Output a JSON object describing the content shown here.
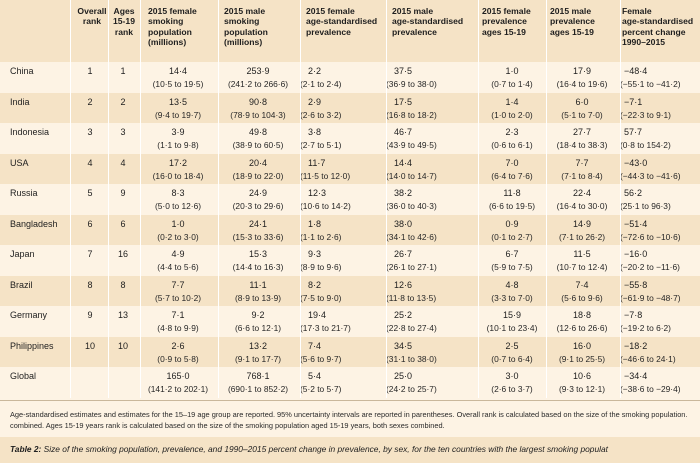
{
  "headers": {
    "overall_rank": "Overall\nrank",
    "ages_rank": "Ages\n15-19\nrank",
    "female_pop": "2015 female\nsmoking\npopulation\n(millions)",
    "male_pop": "2015 male\nsmoking\npopulation\n(millions)",
    "female_prev": "2015 female\nage-standardised\nprevalence",
    "male_prev": "2015 male\nage-standardised\nprevalence",
    "female_prev_1519": "2015 female\nprevalence\nages 15-19",
    "male_prev_1519": "2015 male\nprevalence\nages 15-19",
    "female_change": "Female\nage-standardised\npercent change\n1990–2015"
  },
  "rows": [
    {
      "country": "China",
      "overall": "1",
      "ages": "1",
      "fpop": "14·4",
      "fpop_ci": "(10·5 to 19·5)",
      "mpop": "253·9",
      "mpop_ci": "(241·2 to 266·6)",
      "fprev": "2·2",
      "fprev_ci": "(2·1 to 2·4)",
      "mprev": "37·5",
      "mprev_ci": "(36·9 to 38·0)",
      "fy": "1·0",
      "fy_ci": "(0·7 to 1·4)",
      "my": "17·9",
      "my_ci": "(16·4 to 19·6)",
      "fch": "−48·4",
      "fch_ci": "(−55·1 to −41·2)"
    },
    {
      "country": "India",
      "overall": "2",
      "ages": "2",
      "fpop": "13·5",
      "fpop_ci": "(9·4 to 19·7)",
      "mpop": "90·8",
      "mpop_ci": "(78·9 to 104·3)",
      "fprev": "2·9",
      "fprev_ci": "(2·6 to 3·2)",
      "mprev": "17·5",
      "mprev_ci": "(16·8 to 18·2)",
      "fy": "1·4",
      "fy_ci": "(1·0 to 2·0)",
      "my": "6·0",
      "my_ci": "(5·1 to 7·0)",
      "fch": "−7·1",
      "fch_ci": "(−22·3 to 9·1)"
    },
    {
      "country": "Indonesia",
      "overall": "3",
      "ages": "3",
      "fpop": "3·9",
      "fpop_ci": "(1·1 to 9·8)",
      "mpop": "49·8",
      "mpop_ci": "(38·9 to 60·5)",
      "fprev": "3·8",
      "fprev_ci": "(2·7 to 5·1)",
      "mprev": "46·7",
      "mprev_ci": "(43·9 to 49·5)",
      "fy": "2·3",
      "fy_ci": "(0·6 to 6·1)",
      "my": "27·7",
      "my_ci": "(18·4 to 38·3)",
      "fch": "57·7",
      "fch_ci": "(0·8 to 154·2)"
    },
    {
      "country": "USA",
      "overall": "4",
      "ages": "4",
      "fpop": "17·2",
      "fpop_ci": "(16·0 to 18·4)",
      "mpop": "20·4",
      "mpop_ci": "(18·9 to 22·0)",
      "fprev": "11·7",
      "fprev_ci": "(11·5 to 12·0)",
      "mprev": "14·4",
      "mprev_ci": "(14·0 to 14·7)",
      "fy": "7·0",
      "fy_ci": "(6·4 to 7·6)",
      "my": "7·7",
      "my_ci": "(7·1 to 8·4)",
      "fch": "−43·0",
      "fch_ci": "(−44·3 to −41·6)"
    },
    {
      "country": "Russia",
      "overall": "5",
      "ages": "9",
      "fpop": "8·3",
      "fpop_ci": "(5·0 to 12·6)",
      "mpop": "24·9",
      "mpop_ci": "(20·3 to 29·6)",
      "fprev": "12·3",
      "fprev_ci": "(10·6 to 14·2)",
      "mprev": "38·2",
      "mprev_ci": "(36·0 to 40·3)",
      "fy": "11·8",
      "fy_ci": "(6·6 to 19·5)",
      "my": "22·4",
      "my_ci": "(16·4 to 30·0)",
      "fch": "56·2",
      "fch_ci": "(25·1 to 96·3)"
    },
    {
      "country": "Bangladesh",
      "overall": "6",
      "ages": "6",
      "fpop": "1·0",
      "fpop_ci": "(0·2 to 3·0)",
      "mpop": "24·1",
      "mpop_ci": "(15·3 to 33·6)",
      "fprev": "1·8",
      "fprev_ci": "(1·1 to 2·6)",
      "mprev": "38·0",
      "mprev_ci": "(34·1 to 42·6)",
      "fy": "0·9",
      "fy_ci": "(0·1 to 2·7)",
      "my": "14·9",
      "my_ci": "(7·1 to 26·2)",
      "fch": "−51·4",
      "fch_ci": "(−72·6 to −10·6)"
    },
    {
      "country": "Japan",
      "overall": "7",
      "ages": "16",
      "fpop": "4·9",
      "fpop_ci": "(4·4 to 5·6)",
      "mpop": "15·3",
      "mpop_ci": "(14·4 to 16·3)",
      "fprev": "9·3",
      "fprev_ci": "(8·9 to 9·6)",
      "mprev": "26·7",
      "mprev_ci": "(26·1 to 27·1)",
      "fy": "6·7",
      "fy_ci": "(5·9 to 7·5)",
      "my": "11·5",
      "my_ci": "(10·7 to 12·4)",
      "fch": "−16·0",
      "fch_ci": "(−20·2 to −11·6)"
    },
    {
      "country": "Brazil",
      "overall": "8",
      "ages": "8",
      "fpop": "7·7",
      "fpop_ci": "(5·7 to 10·2)",
      "mpop": "11·1",
      "mpop_ci": "(8·9 to 13·9)",
      "fprev": "8·2",
      "fprev_ci": "(7·5 to 9·0)",
      "mprev": "12·6",
      "mprev_ci": "(11·8 to 13·5)",
      "fy": "4·8",
      "fy_ci": "(3·3 to 7·0)",
      "my": "7·4",
      "my_ci": "(5·6 to 9·6)",
      "fch": "−55·8",
      "fch_ci": "(−61·9 to −48·7)"
    },
    {
      "country": "Germany",
      "overall": "9",
      "ages": "13",
      "fpop": "7·1",
      "fpop_ci": "(4·8 to 9·9)",
      "mpop": "9·2",
      "mpop_ci": "(6·6 to 12·1)",
      "fprev": "19·4",
      "fprev_ci": "(17·3 to 21·7)",
      "mprev": "25·2",
      "mprev_ci": "(22·8 to 27·4)",
      "fy": "15·9",
      "fy_ci": "(10·1 to 23·4)",
      "my": "18·8",
      "my_ci": "(12·6 to 26·6)",
      "fch": "−7·8",
      "fch_ci": "(−19·2 to 6·2)"
    },
    {
      "country": "Philippines",
      "overall": "10",
      "ages": "10",
      "fpop": "2·6",
      "fpop_ci": "(0·9 to 5·8)",
      "mpop": "13·2",
      "mpop_ci": "(9·1 to 17·7)",
      "fprev": "7·4",
      "fprev_ci": "(5·6 to 9·7)",
      "mprev": "34·5",
      "mprev_ci": "(31·1 to 38·0)",
      "fy": "2·5",
      "fy_ci": "(0·7 to 6·4)",
      "my": "16·0",
      "my_ci": "(9·1 to 25·5)",
      "fch": "−18·2",
      "fch_ci": "(−46·6 to 24·1)"
    },
    {
      "country": "Global",
      "overall": "",
      "ages": "",
      "fpop": "165·0",
      "fpop_ci": "(141·2 to 202·1)",
      "mpop": "768·1",
      "mpop_ci": "(690·1 to 852·2)",
      "fprev": "5·4",
      "fprev_ci": "(5·2 to 5·7)",
      "mprev": "25·0",
      "mprev_ci": "(24·2 to 25·7)",
      "fy": "3·0",
      "fy_ci": "(2·6 to 3·7)",
      "my": "10·6",
      "my_ci": "(9·3 to 12·1)",
      "fch": "−34·4",
      "fch_ci": "(−38·6 to −29·4)"
    }
  ],
  "footnote": "Age-standardised estimates and estimates for the 15–19 age group are reported. 95% uncertainty intervals are reported in parentheses. Overall rank is calculated based on the size of the smoking population. combined. Ages 15-19 years rank is calculated based on the size of the smoking population aged 15-19 years, both sexes combined.",
  "caption_label": "Table 2:",
  "caption_text": " Size of the smoking population, prevalence, and 1990–2015 percent change in prevalence, by sex, for the ten countries with the largest smoking populat"
}
